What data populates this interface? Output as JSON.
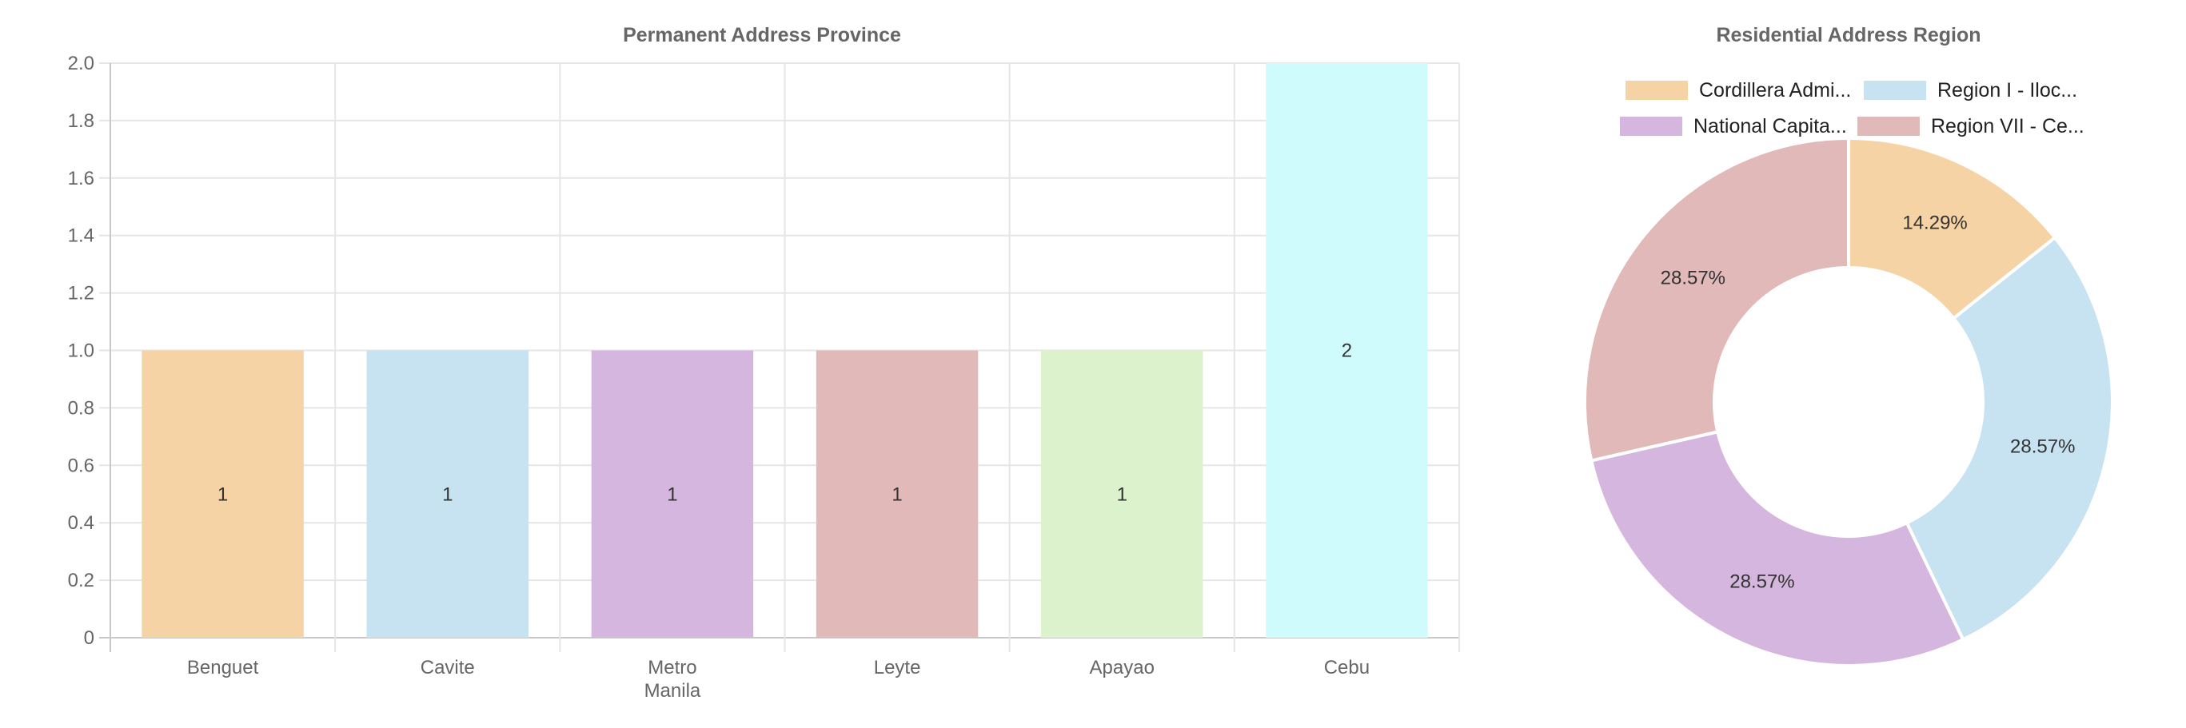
{
  "chart_data": [
    {
      "type": "bar",
      "title": "Permanent Address Province",
      "categories": [
        "Benguet",
        "Cavite",
        "Metro Manila",
        "Leyte",
        "Apayao",
        "Cebu"
      ],
      "category_lines": [
        [
          "Benguet"
        ],
        [
          "Cavite"
        ],
        [
          "Metro",
          "Manila"
        ],
        [
          "Leyte"
        ],
        [
          "Apayao"
        ],
        [
          "Cebu"
        ]
      ],
      "values": [
        1,
        1,
        1,
        1,
        1,
        2
      ],
      "colors": [
        "#f5d3a4",
        "#c7e3f1",
        "#d5b6de",
        "#e1b9b8",
        "#dcf2cc",
        "#d0fbfc"
      ],
      "ylim": [
        0,
        2
      ],
      "yticks": [
        "0",
        "0.2",
        "0.4",
        "0.6",
        "0.8",
        "1.0",
        "1.2",
        "1.4",
        "1.6",
        "1.8",
        "2.0"
      ],
      "grid": true
    },
    {
      "type": "pie",
      "title": "Residential Address Region",
      "labels": [
        "Cordillera Admi...",
        "Region I - Iloc...",
        "National Capita...",
        "Region VII - Ce..."
      ],
      "values": [
        14.29,
        28.57,
        28.57,
        28.57
      ],
      "slice_order": [
        0,
        1,
        2,
        3
      ],
      "value_labels": [
        "14.29%",
        "28.57%",
        "28.57%",
        "28.57%"
      ],
      "colors": [
        "#f5d3a4",
        "#c7e3f1",
        "#d5b6de",
        "#e1b9b8"
      ],
      "legend_order": [
        0,
        1,
        2,
        3
      ],
      "legend": "top"
    }
  ]
}
